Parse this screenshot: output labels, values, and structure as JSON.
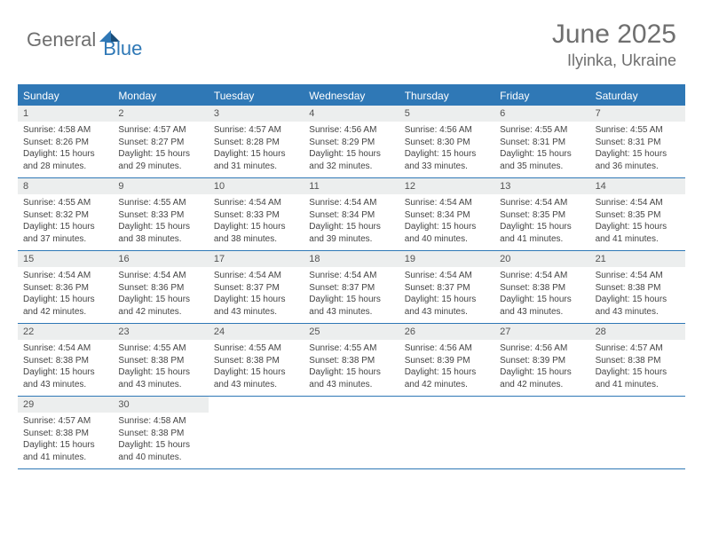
{
  "logo": {
    "general": "General",
    "blue": "Blue"
  },
  "title": {
    "month": "June 2025",
    "location": "Ilyinka, Ukraine"
  },
  "colors": {
    "header_bg": "#2f78b6",
    "header_text": "#ffffff",
    "daynum_bg": "#eceeee",
    "daynum_text": "#535353",
    "body_text": "#444444",
    "title_text": "#6f6f6f",
    "divider": "#2f78b6",
    "background": "#ffffff"
  },
  "weekdays": [
    "Sunday",
    "Monday",
    "Tuesday",
    "Wednesday",
    "Thursday",
    "Friday",
    "Saturday"
  ],
  "weeks": [
    [
      {
        "num": "1",
        "sunrise": "Sunrise: 4:58 AM",
        "sunset": "Sunset: 8:26 PM",
        "daylight": "Daylight: 15 hours and 28 minutes."
      },
      {
        "num": "2",
        "sunrise": "Sunrise: 4:57 AM",
        "sunset": "Sunset: 8:27 PM",
        "daylight": "Daylight: 15 hours and 29 minutes."
      },
      {
        "num": "3",
        "sunrise": "Sunrise: 4:57 AM",
        "sunset": "Sunset: 8:28 PM",
        "daylight": "Daylight: 15 hours and 31 minutes."
      },
      {
        "num": "4",
        "sunrise": "Sunrise: 4:56 AM",
        "sunset": "Sunset: 8:29 PM",
        "daylight": "Daylight: 15 hours and 32 minutes."
      },
      {
        "num": "5",
        "sunrise": "Sunrise: 4:56 AM",
        "sunset": "Sunset: 8:30 PM",
        "daylight": "Daylight: 15 hours and 33 minutes."
      },
      {
        "num": "6",
        "sunrise": "Sunrise: 4:55 AM",
        "sunset": "Sunset: 8:31 PM",
        "daylight": "Daylight: 15 hours and 35 minutes."
      },
      {
        "num": "7",
        "sunrise": "Sunrise: 4:55 AM",
        "sunset": "Sunset: 8:31 PM",
        "daylight": "Daylight: 15 hours and 36 minutes."
      }
    ],
    [
      {
        "num": "8",
        "sunrise": "Sunrise: 4:55 AM",
        "sunset": "Sunset: 8:32 PM",
        "daylight": "Daylight: 15 hours and 37 minutes."
      },
      {
        "num": "9",
        "sunrise": "Sunrise: 4:55 AM",
        "sunset": "Sunset: 8:33 PM",
        "daylight": "Daylight: 15 hours and 38 minutes."
      },
      {
        "num": "10",
        "sunrise": "Sunrise: 4:54 AM",
        "sunset": "Sunset: 8:33 PM",
        "daylight": "Daylight: 15 hours and 38 minutes."
      },
      {
        "num": "11",
        "sunrise": "Sunrise: 4:54 AM",
        "sunset": "Sunset: 8:34 PM",
        "daylight": "Daylight: 15 hours and 39 minutes."
      },
      {
        "num": "12",
        "sunrise": "Sunrise: 4:54 AM",
        "sunset": "Sunset: 8:34 PM",
        "daylight": "Daylight: 15 hours and 40 minutes."
      },
      {
        "num": "13",
        "sunrise": "Sunrise: 4:54 AM",
        "sunset": "Sunset: 8:35 PM",
        "daylight": "Daylight: 15 hours and 41 minutes."
      },
      {
        "num": "14",
        "sunrise": "Sunrise: 4:54 AM",
        "sunset": "Sunset: 8:35 PM",
        "daylight": "Daylight: 15 hours and 41 minutes."
      }
    ],
    [
      {
        "num": "15",
        "sunrise": "Sunrise: 4:54 AM",
        "sunset": "Sunset: 8:36 PM",
        "daylight": "Daylight: 15 hours and 42 minutes."
      },
      {
        "num": "16",
        "sunrise": "Sunrise: 4:54 AM",
        "sunset": "Sunset: 8:36 PM",
        "daylight": "Daylight: 15 hours and 42 minutes."
      },
      {
        "num": "17",
        "sunrise": "Sunrise: 4:54 AM",
        "sunset": "Sunset: 8:37 PM",
        "daylight": "Daylight: 15 hours and 43 minutes."
      },
      {
        "num": "18",
        "sunrise": "Sunrise: 4:54 AM",
        "sunset": "Sunset: 8:37 PM",
        "daylight": "Daylight: 15 hours and 43 minutes."
      },
      {
        "num": "19",
        "sunrise": "Sunrise: 4:54 AM",
        "sunset": "Sunset: 8:37 PM",
        "daylight": "Daylight: 15 hours and 43 minutes."
      },
      {
        "num": "20",
        "sunrise": "Sunrise: 4:54 AM",
        "sunset": "Sunset: 8:38 PM",
        "daylight": "Daylight: 15 hours and 43 minutes."
      },
      {
        "num": "21",
        "sunrise": "Sunrise: 4:54 AM",
        "sunset": "Sunset: 8:38 PM",
        "daylight": "Daylight: 15 hours and 43 minutes."
      }
    ],
    [
      {
        "num": "22",
        "sunrise": "Sunrise: 4:54 AM",
        "sunset": "Sunset: 8:38 PM",
        "daylight": "Daylight: 15 hours and 43 minutes."
      },
      {
        "num": "23",
        "sunrise": "Sunrise: 4:55 AM",
        "sunset": "Sunset: 8:38 PM",
        "daylight": "Daylight: 15 hours and 43 minutes."
      },
      {
        "num": "24",
        "sunrise": "Sunrise: 4:55 AM",
        "sunset": "Sunset: 8:38 PM",
        "daylight": "Daylight: 15 hours and 43 minutes."
      },
      {
        "num": "25",
        "sunrise": "Sunrise: 4:55 AM",
        "sunset": "Sunset: 8:38 PM",
        "daylight": "Daylight: 15 hours and 43 minutes."
      },
      {
        "num": "26",
        "sunrise": "Sunrise: 4:56 AM",
        "sunset": "Sunset: 8:39 PM",
        "daylight": "Daylight: 15 hours and 42 minutes."
      },
      {
        "num": "27",
        "sunrise": "Sunrise: 4:56 AM",
        "sunset": "Sunset: 8:39 PM",
        "daylight": "Daylight: 15 hours and 42 minutes."
      },
      {
        "num": "28",
        "sunrise": "Sunrise: 4:57 AM",
        "sunset": "Sunset: 8:38 PM",
        "daylight": "Daylight: 15 hours and 41 minutes."
      }
    ],
    [
      {
        "num": "29",
        "sunrise": "Sunrise: 4:57 AM",
        "sunset": "Sunset: 8:38 PM",
        "daylight": "Daylight: 15 hours and 41 minutes."
      },
      {
        "num": "30",
        "sunrise": "Sunrise: 4:58 AM",
        "sunset": "Sunset: 8:38 PM",
        "daylight": "Daylight: 15 hours and 40 minutes."
      },
      null,
      null,
      null,
      null,
      null
    ]
  ]
}
